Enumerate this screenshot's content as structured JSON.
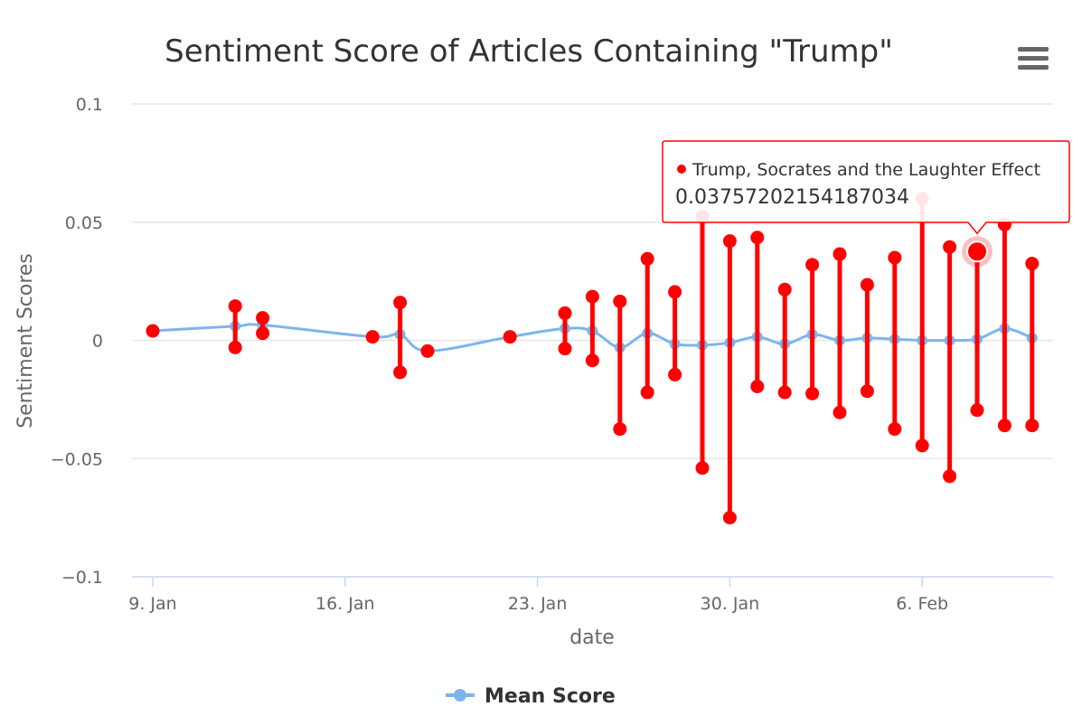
{
  "chart_data": {
    "type": "line",
    "title": "Sentiment Score of Articles Containing \"Trump\"",
    "xlabel": "date",
    "ylabel": "Sentiment Scores",
    "ylim": [
      -0.1,
      0.1
    ],
    "yticks": [
      -0.1,
      -0.05,
      0,
      0.05,
      0.1
    ],
    "ytick_labels": [
      "−0.1",
      "−0.05",
      "0",
      "0.05",
      "0.1"
    ],
    "xlim": [
      "2017-01-09",
      "2017-02-11"
    ],
    "xticks": [
      "2017-01-09",
      "2017-01-16",
      "2017-01-23",
      "2017-01-30",
      "2017-02-06"
    ],
    "xtick_labels": [
      "9. Jan",
      "16. Jan",
      "23. Jan",
      "30. Jan",
      "6. Feb"
    ],
    "grid": true,
    "legend_position": "bottom-center",
    "series": [
      {
        "name": "Mean Score",
        "type": "spline",
        "color": "#7cb5ec",
        "points": [
          {
            "x": "2017-01-09",
            "y": 0.004
          },
          {
            "x": "2017-01-12",
            "y": 0.006
          },
          {
            "x": "2017-01-13",
            "y": 0.0065
          },
          {
            "x": "2017-01-17",
            "y": 0.0015
          },
          {
            "x": "2017-01-18",
            "y": 0.0025
          },
          {
            "x": "2017-01-19",
            "y": -0.0045
          },
          {
            "x": "2017-01-22",
            "y": 0.0015
          },
          {
            "x": "2017-01-24",
            "y": 0.005
          },
          {
            "x": "2017-01-25",
            "y": 0.004
          },
          {
            "x": "2017-01-26",
            "y": -0.003
          },
          {
            "x": "2017-01-27",
            "y": 0.003
          },
          {
            "x": "2017-01-28",
            "y": -0.0015
          },
          {
            "x": "2017-01-29",
            "y": -0.002
          },
          {
            "x": "2017-01-30",
            "y": -0.001
          },
          {
            "x": "2017-01-31",
            "y": 0.0015
          },
          {
            "x": "2017-02-01",
            "y": -0.0015
          },
          {
            "x": "2017-02-02",
            "y": 0.0025
          },
          {
            "x": "2017-02-03",
            "y": 0.0
          },
          {
            "x": "2017-02-04",
            "y": 0.001
          },
          {
            "x": "2017-02-05",
            "y": 0.0005
          },
          {
            "x": "2017-02-06",
            "y": 0.0
          },
          {
            "x": "2017-02-07",
            "y": 0.0
          },
          {
            "x": "2017-02-08",
            "y": 0.0005
          },
          {
            "x": "2017-02-09",
            "y": 0.005
          },
          {
            "x": "2017-02-10",
            "y": 0.001
          }
        ]
      },
      {
        "type": "range",
        "color": "#ff0000",
        "points": [
          {
            "x": "2017-01-09",
            "low": 0.004,
            "high": 0.004
          },
          {
            "x": "2017-01-12",
            "low": -0.003,
            "high": 0.0145
          },
          {
            "x": "2017-01-13",
            "low": 0.003,
            "high": 0.0095
          },
          {
            "x": "2017-01-17",
            "low": 0.0015,
            "high": 0.0015
          },
          {
            "x": "2017-01-18",
            "low": -0.0135,
            "high": 0.016
          },
          {
            "x": "2017-01-19",
            "low": -0.0045,
            "high": -0.0045
          },
          {
            "x": "2017-01-22",
            "low": 0.0015,
            "high": 0.0015
          },
          {
            "x": "2017-01-24",
            "low": -0.0035,
            "high": 0.0115
          },
          {
            "x": "2017-01-25",
            "low": -0.0085,
            "high": 0.0185
          },
          {
            "x": "2017-01-26",
            "low": -0.0375,
            "high": 0.0165
          },
          {
            "x": "2017-01-27",
            "low": -0.022,
            "high": 0.0345
          },
          {
            "x": "2017-01-28",
            "low": -0.0145,
            "high": 0.0205
          },
          {
            "x": "2017-01-29",
            "low": -0.054,
            "high": 0.0525
          },
          {
            "x": "2017-01-30",
            "low": -0.075,
            "high": 0.042
          },
          {
            "x": "2017-01-31",
            "low": -0.0195,
            "high": 0.0435
          },
          {
            "x": "2017-02-01",
            "low": -0.022,
            "high": 0.0215
          },
          {
            "x": "2017-02-02",
            "low": -0.0225,
            "high": 0.032
          },
          {
            "x": "2017-02-03",
            "low": -0.0305,
            "high": 0.0365
          },
          {
            "x": "2017-02-04",
            "low": -0.0215,
            "high": 0.0235
          },
          {
            "x": "2017-02-05",
            "low": -0.0375,
            "high": 0.035
          },
          {
            "x": "2017-02-06",
            "low": -0.0445,
            "high": 0.06
          },
          {
            "x": "2017-02-07",
            "low": -0.0575,
            "high": 0.0395
          },
          {
            "x": "2017-02-08",
            "low": -0.0295,
            "high": 0.03757202154187034
          },
          {
            "x": "2017-02-09",
            "low": -0.036,
            "high": 0.049
          },
          {
            "x": "2017-02-10",
            "low": -0.036,
            "high": 0.0325
          }
        ]
      }
    ],
    "tooltip": {
      "label": "Trump, Socrates and the Laughter Effect",
      "value": "0.03757202154187034",
      "point": {
        "x": "2017-02-08",
        "y": 0.03757202154187034
      }
    }
  },
  "ui": {
    "menu_icon": "hamburger-menu-icon",
    "legend_label": "Mean Score"
  }
}
